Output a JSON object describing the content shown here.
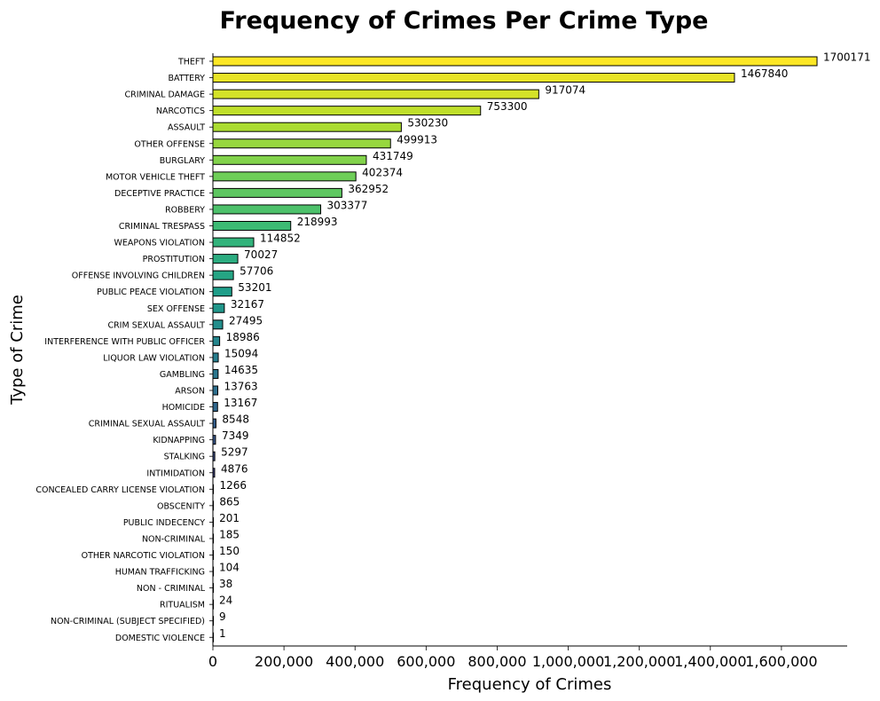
{
  "chart_data": {
    "type": "bar",
    "orientation": "horizontal",
    "title": "Frequency of Crimes Per Crime Type",
    "xlabel": "Frequency of Crimes",
    "ylabel": "Type of Crime",
    "xlim": [
      0,
      1785000
    ],
    "xticks": [
      0,
      200000,
      400000,
      600000,
      800000,
      1000000,
      1200000,
      1400000,
      1600000
    ],
    "xtick_labels": [
      "0",
      "200,000",
      "400,000",
      "600,000",
      "800,000",
      "1,000,000",
      "1,200,000",
      "1,400,000",
      "1,600,000"
    ],
    "grid": false,
    "colormap": "viridis (reversed: yellow at top, dark purple at bottom)",
    "color_top": "#fde725",
    "color_bottom": "#440154",
    "edge_color": "#000000",
    "categories": [
      "THEFT",
      "BATTERY",
      "CRIMINAL DAMAGE",
      "NARCOTICS",
      "ASSAULT",
      "OTHER OFFENSE",
      "BURGLARY",
      "MOTOR VEHICLE THEFT",
      "DECEPTIVE PRACTICE",
      "ROBBERY",
      "CRIMINAL TRESPASS",
      "WEAPONS VIOLATION",
      "PROSTITUTION",
      "OFFENSE INVOLVING CHILDREN",
      "PUBLIC PEACE VIOLATION",
      "SEX OFFENSE",
      "CRIM SEXUAL ASSAULT",
      "INTERFERENCE WITH PUBLIC OFFICER",
      "LIQUOR LAW VIOLATION",
      "GAMBLING",
      "ARSON",
      "HOMICIDE",
      "CRIMINAL SEXUAL ASSAULT",
      "KIDNAPPING",
      "STALKING",
      "INTIMIDATION",
      "CONCEALED CARRY LICENSE VIOLATION",
      "OBSCENITY",
      "PUBLIC INDECENCY",
      "NON-CRIMINAL",
      "OTHER NARCOTIC VIOLATION",
      "HUMAN TRAFFICKING",
      "NON - CRIMINAL",
      "RITUALISM",
      "NON-CRIMINAL (SUBJECT SPECIFIED)",
      "DOMESTIC VIOLENCE"
    ],
    "values": [
      1700171,
      1467840,
      917074,
      753300,
      530230,
      499913,
      431749,
      402374,
      362952,
      303377,
      218993,
      114852,
      70027,
      57706,
      53201,
      32167,
      27495,
      18986,
      15094,
      14635,
      13763,
      13167,
      8548,
      7349,
      5297,
      4876,
      1266,
      865,
      201,
      185,
      150,
      104,
      38,
      24,
      9,
      1
    ],
    "value_labels": [
      "1700171",
      "1467840",
      "917074",
      "753300",
      "530230",
      "499913",
      "431749",
      "402374",
      "362952",
      "303377",
      "218993",
      "114852",
      "70027",
      "57706",
      "53201",
      "32167",
      "27495",
      "18986",
      "15094",
      "14635",
      "13763",
      "13167",
      "8548",
      "7349",
      "5297",
      "4876",
      "1266",
      "865",
      "201",
      "185",
      "150",
      "104",
      "38",
      "24",
      "9",
      "1"
    ]
  }
}
